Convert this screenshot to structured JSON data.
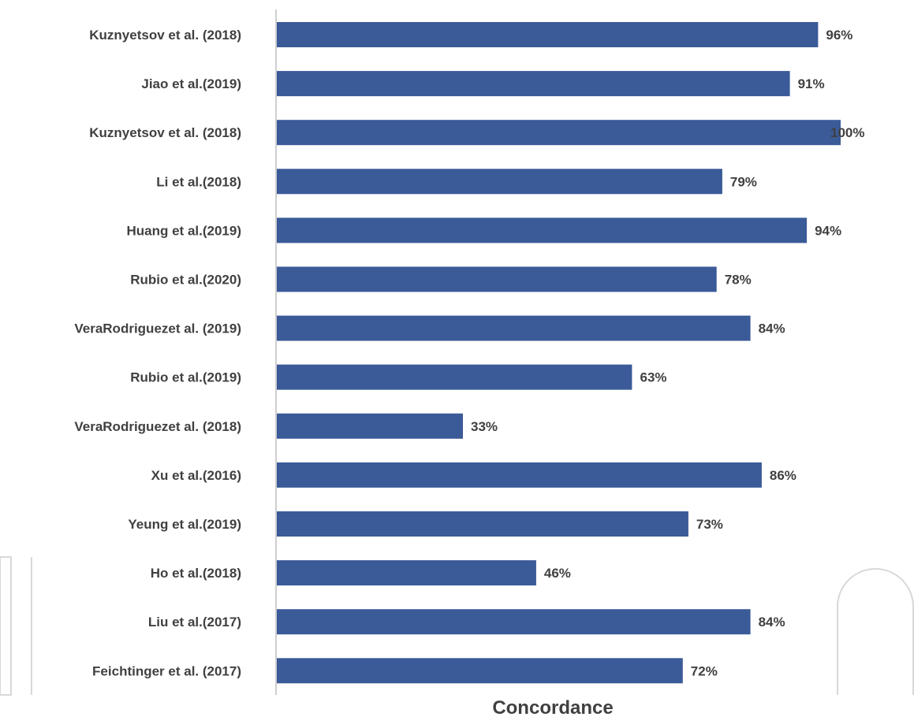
{
  "chart_data": {
    "type": "bar",
    "orientation": "horizontal",
    "categories": [
      "Kuznyetsov et al. (2018)",
      "Jiao et al.(2019)",
      "Kuznyetsov et al. (2018)",
      "Li et al.(2018)",
      "Huang et al.(2019)",
      "Rubio et al.(2020)",
      "VeraRodriguezet al. (2019)",
      "Rubio et al.(2019)",
      "VeraRodriguezet al. (2018)",
      "Xu et al.(2016)",
      "Yeung et al.(2019)",
      "Ho et al.(2018)",
      "Liu et al.(2017)",
      "Feichtinger et al. (2017)"
    ],
    "values": [
      96,
      91,
      100,
      79,
      94,
      78,
      84,
      63,
      33,
      86,
      73,
      46,
      84,
      72
    ],
    "data_labels": [
      "96%",
      "91%",
      "100%",
      "79%",
      "94%",
      "78%",
      "84%",
      "63%",
      "33%",
      "86%",
      "73%",
      "46%",
      "84%",
      "72%"
    ],
    "title": "",
    "xlabel": "Concordance",
    "ylabel": "",
    "xlim": [
      0,
      100
    ],
    "grid": false,
    "legend": "none",
    "bar_color": "#3a5a98",
    "axis_color": "#bfbfbf",
    "text_color": "#404040"
  }
}
